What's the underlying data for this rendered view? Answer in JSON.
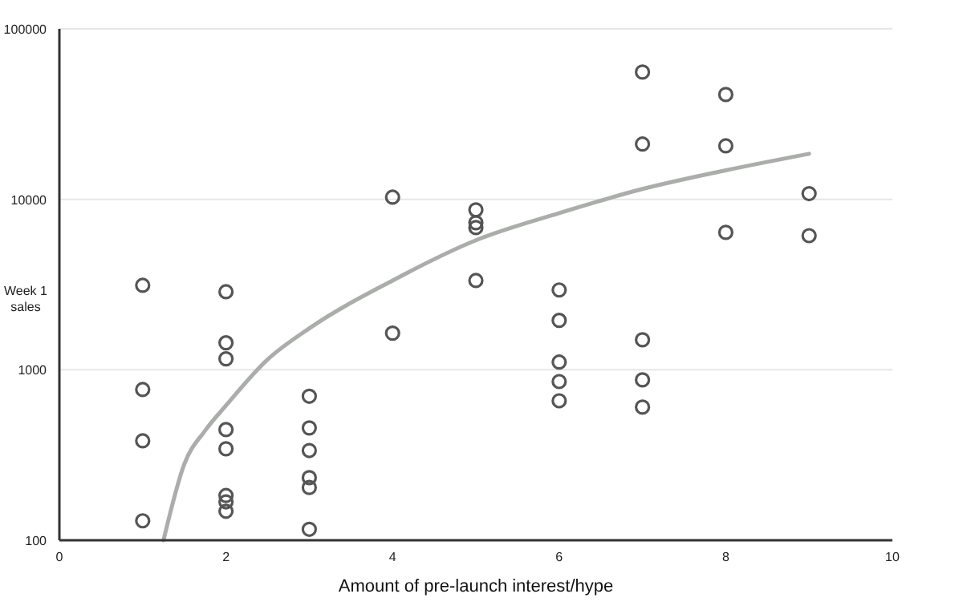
{
  "chart_data": {
    "type": "scatter",
    "xlabel": "Amount of pre-launch interest/hype",
    "ylabel": "Week 1 sales",
    "log": "y",
    "grid": "y",
    "marker": "circle",
    "xlim": [
      0,
      10
    ],
    "xticks": [
      0,
      2,
      4,
      6,
      8,
      10
    ],
    "ylim": [
      100,
      100000
    ],
    "yticks": [
      100,
      1000,
      10000,
      100000
    ],
    "series": [
      {
        "color": "#555555",
        "x": [
          1,
          1,
          1,
          1,
          2,
          2,
          2,
          2,
          2,
          2,
          2,
          2,
          3,
          3,
          3,
          3,
          3,
          3,
          4,
          4,
          5,
          5,
          5,
          5,
          6,
          6,
          6,
          6,
          6,
          7,
          7,
          7,
          7,
          7,
          8,
          8,
          8,
          9,
          9
        ],
        "values": [
          3130,
          766,
          383,
          130,
          2870,
          1440,
          1160,
          446,
          344,
          183,
          168,
          148,
          700,
          456,
          336,
          233,
          204,
          116,
          10300,
          1640,
          8670,
          7290,
          6830,
          3340,
          2940,
          1950,
          1110,
          853,
          658,
          55800,
          21100,
          1500,
          873,
          604,
          41200,
          20600,
          6400,
          10800,
          6120
        ]
      },
      {
        "type": "line",
        "color": "#aaadaa",
        "line_style": "solid",
        "marker": "none",
        "x": [
          1.25,
          1.5,
          1.75,
          2,
          2.5,
          3,
          4,
          5,
          6,
          7,
          8,
          9
        ],
        "values": [
          100,
          280,
          440,
          617,
          1150,
          1750,
          3340,
          5750,
          8300,
          11500,
          14800,
          18500
        ]
      }
    ]
  }
}
